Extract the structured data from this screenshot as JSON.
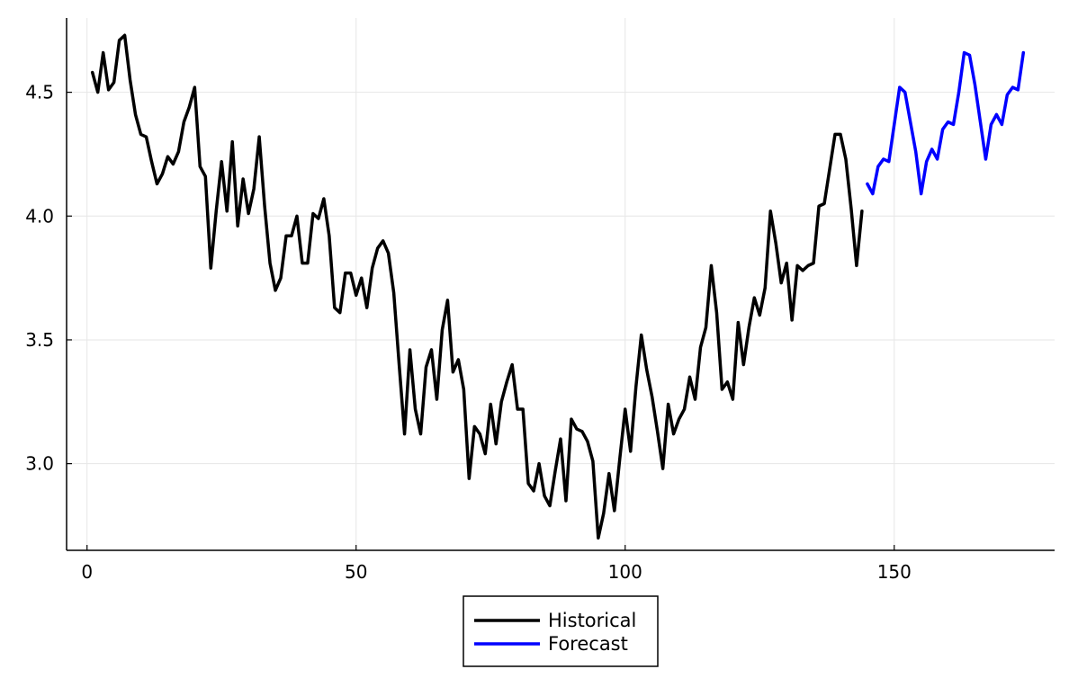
{
  "chart_data": {
    "type": "line",
    "title": "",
    "xlabel": "",
    "ylabel": "",
    "xlim": [
      -3.8,
      179.8
    ],
    "ylim": [
      2.65,
      4.8
    ],
    "xticks": [
      0,
      50,
      100,
      150
    ],
    "yticks": [
      3.0,
      3.5,
      4.0,
      4.5
    ],
    "xtick_labels": [
      "0",
      "50",
      "100",
      "150"
    ],
    "ytick_labels": [
      "3.0",
      "3.5",
      "4.0",
      "4.5"
    ],
    "grid": true,
    "legend_position": "bottom-center-outside",
    "series": [
      {
        "name": "Historical",
        "color": "#000000",
        "x_start": 1,
        "values": [
          4.58,
          4.5,
          4.66,
          4.51,
          4.54,
          4.71,
          4.73,
          4.55,
          4.41,
          4.33,
          4.32,
          4.22,
          4.13,
          4.17,
          4.24,
          4.21,
          4.26,
          4.38,
          4.44,
          4.52,
          4.2,
          4.16,
          3.79,
          4.02,
          4.22,
          4.02,
          4.3,
          3.96,
          4.15,
          4.01,
          4.11,
          4.32,
          4.04,
          3.81,
          3.7,
          3.75,
          3.92,
          3.92,
          4.0,
          3.81,
          3.81,
          4.01,
          3.99,
          4.07,
          3.92,
          3.63,
          3.61,
          3.77,
          3.77,
          3.68,
          3.75,
          3.63,
          3.79,
          3.87,
          3.9,
          3.85,
          3.69,
          3.4,
          3.12,
          3.46,
          3.22,
          3.12,
          3.39,
          3.46,
          3.26,
          3.54,
          3.66,
          3.37,
          3.42,
          3.3,
          2.94,
          3.15,
          3.12,
          3.04,
          3.24,
          3.08,
          3.25,
          3.33,
          3.4,
          3.22,
          3.22,
          2.92,
          2.89,
          3.0,
          2.87,
          2.83,
          2.97,
          3.1,
          2.85,
          3.18,
          3.14,
          3.13,
          3.09,
          3.01,
          2.7,
          2.8,
          2.96,
          2.81,
          3.02,
          3.22,
          3.05,
          3.31,
          3.52,
          3.38,
          3.27,
          3.13,
          2.98,
          3.24,
          3.12,
          3.18,
          3.22,
          3.35,
          3.26,
          3.47,
          3.55,
          3.8,
          3.61,
          3.3,
          3.33,
          3.26,
          3.57,
          3.4,
          3.55,
          3.67,
          3.6,
          3.71,
          4.02,
          3.89,
          3.73,
          3.81,
          3.58,
          3.8,
          3.78,
          3.8,
          3.81,
          4.04,
          4.05,
          4.19,
          4.33,
          4.33,
          4.23,
          4.03,
          3.8,
          4.02
        ]
      },
      {
        "name": "Forecast",
        "color": "#0000ff",
        "x_start": 145,
        "values": [
          4.13,
          4.09,
          4.2,
          4.23,
          4.22,
          4.37,
          4.52,
          4.5,
          4.38,
          4.26,
          4.09,
          4.22,
          4.27,
          4.23,
          4.35,
          4.38,
          4.37,
          4.5,
          4.66,
          4.65,
          4.53,
          4.38,
          4.23,
          4.37,
          4.41,
          4.37,
          4.49,
          4.52,
          4.51,
          4.66
        ]
      }
    ]
  }
}
